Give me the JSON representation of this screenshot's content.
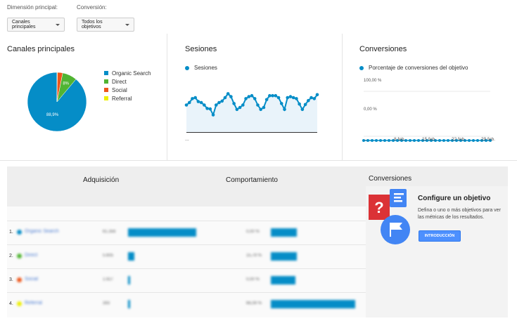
{
  "filters": {
    "dimension": {
      "label": "Dimensión principal:",
      "value": "Canales principales"
    },
    "conversion": {
      "label": "Conversión:",
      "value": "Todos los objetivos"
    }
  },
  "cards": {
    "channels": {
      "title": "Canales principales"
    },
    "sessions": {
      "title": "Sesiones",
      "series_label": "Sesiones",
      "x_tick": "..."
    },
    "conversions": {
      "title": "Conversiones",
      "series_label": "Porcentaje de conversiones del objetivo",
      "y_top": "100,00 %",
      "y_bottom": "0,00 %",
      "x_ticks": [
        "...",
        "8 feb.",
        "15 feb.",
        "22 feb.",
        "29 feb."
      ]
    }
  },
  "chart_data": [
    {
      "type": "pie",
      "title": "Canales principales",
      "categories": [
        "Organic Search",
        "Direct",
        "Social",
        "Referral"
      ],
      "values": [
        88.9,
        8,
        2.9,
        0.2
      ],
      "colors": [
        "#058dc7",
        "#50b432",
        "#ed561b",
        "#edef00"
      ],
      "slice_labels": [
        "88,9%",
        "8%",
        "",
        ""
      ],
      "legend": "right"
    },
    {
      "type": "area",
      "title": "Sesiones",
      "series": [
        {
          "name": "Sesiones",
          "values": [
            0.55,
            0.6,
            0.68,
            0.7,
            0.62,
            0.6,
            0.55,
            0.48,
            0.47,
            0.35,
            0.55,
            0.6,
            0.63,
            0.7,
            0.78,
            0.72,
            0.58,
            0.46,
            0.5,
            0.55,
            0.68,
            0.72,
            0.74,
            0.68,
            0.55,
            0.46,
            0.5,
            0.66,
            0.74,
            0.74,
            0.74,
            0.7,
            0.58,
            0.46,
            0.7,
            0.72,
            0.7,
            0.68,
            0.57,
            0.46,
            0.56,
            0.64,
            0.7,
            0.68,
            0.76
          ]
        }
      ],
      "color": "#058dc7"
    },
    {
      "type": "line",
      "title": "Conversiones",
      "series": [
        {
          "name": "Porcentaje de conversiones del objetivo",
          "values": [
            0,
            0,
            0,
            0,
            0,
            0,
            0,
            0,
            0,
            0,
            0,
            0,
            0,
            0,
            0,
            0,
            0,
            0,
            0,
            0,
            0,
            0,
            0,
            0,
            0,
            0,
            0,
            0,
            0,
            0,
            0
          ]
        }
      ],
      "ylim": [
        0,
        100
      ],
      "y_ticks": [
        "100,00 %",
        "0,00 %"
      ],
      "x_ticks": [
        "...",
        "8 feb.",
        "15 feb.",
        "22 feb.",
        "29 feb."
      ],
      "color": "#058dc7"
    }
  ],
  "table": {
    "sections": [
      "Adquisición",
      "Comportamiento",
      "Conversiones"
    ],
    "rows": [
      {
        "num": "1.",
        "name": "Organic Search",
        "color": "#058dc7",
        "val": "61.356",
        "bar1": 0.9,
        "pct": "0,00 %",
        "bar2": 0.3
      },
      {
        "num": "2.",
        "name": "Direct",
        "color": "#50b432",
        "val": "5.605",
        "bar1": 0.08,
        "pct": "15,79 %",
        "bar2": 0.3
      },
      {
        "num": "3.",
        "name": "Social",
        "color": "#ed561b",
        "val": "1.927",
        "bar1": 0.03,
        "pct": "0,00 %",
        "bar2": 0.29
      },
      {
        "num": "4.",
        "name": "Referral",
        "color": "#edef00",
        "val": "393",
        "bar1": 0.01,
        "pct": "66,09 %",
        "bar2": 0.98
      }
    ]
  },
  "goal": {
    "header": "Conversiones",
    "title": "Configure un objetivo",
    "text": "Defina o uno o más objetivos para ver las métricas de los resultados.",
    "button": "INTRODUCCIÓN"
  }
}
